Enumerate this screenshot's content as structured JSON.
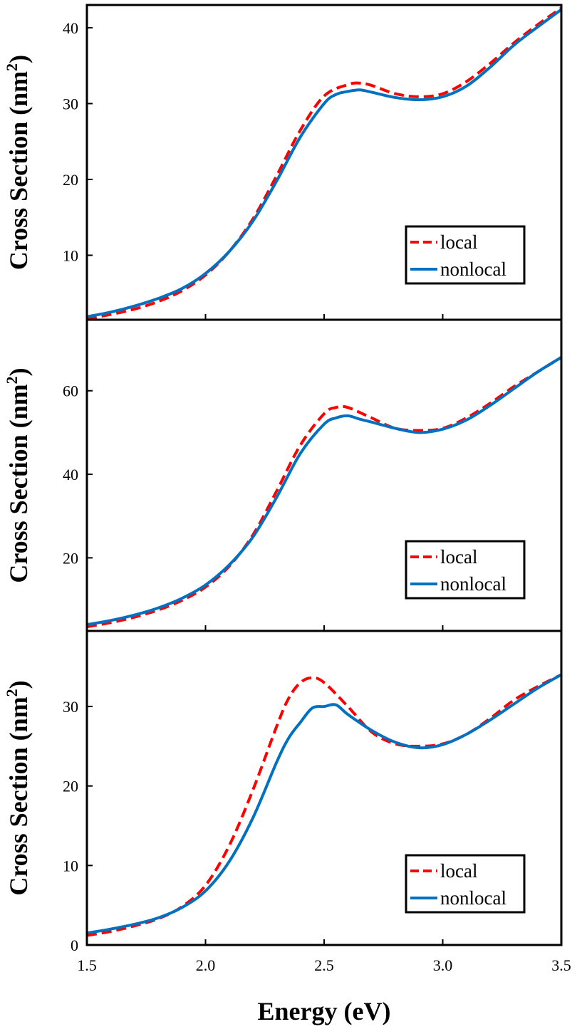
{
  "chart_data": [
    {
      "type": "line",
      "panel": "top",
      "ylabel": "Cross Section (nm",
      "ylabel_sup": "2",
      "ylabel_close": ")",
      "ylim": [
        1.5,
        43
      ],
      "yticks": [
        10,
        20,
        30,
        40
      ],
      "ytick_labels": [
        "10",
        "20",
        "30",
        "40"
      ],
      "legend_placement": "bottom-right",
      "series": [
        {
          "name": "local",
          "color": "#ff0000",
          "dash": "dashed",
          "x": [
            1.5,
            1.6,
            1.7,
            1.8,
            1.9,
            2.0,
            2.1,
            2.2,
            2.3,
            2.4,
            2.5,
            2.6,
            2.65,
            2.7,
            2.8,
            2.9,
            3.0,
            3.1,
            3.2,
            3.3,
            3.4,
            3.5
          ],
          "y": [
            1.6,
            2.2,
            2.9,
            3.9,
            5.3,
            7.4,
            10.5,
            14.8,
            20.5,
            26.5,
            31.0,
            32.5,
            32.7,
            32.4,
            31.3,
            30.9,
            31.3,
            32.9,
            35.3,
            38.0,
            40.4,
            42.6
          ]
        },
        {
          "name": "nonlocal",
          "color": "#0070c0",
          "dash": "solid",
          "x": [
            1.5,
            1.6,
            1.7,
            1.8,
            1.9,
            2.0,
            2.1,
            2.2,
            2.3,
            2.4,
            2.5,
            2.55,
            2.6,
            2.65,
            2.7,
            2.8,
            2.9,
            3.0,
            3.1,
            3.2,
            3.3,
            3.4,
            3.5
          ],
          "y": [
            1.9,
            2.5,
            3.3,
            4.3,
            5.6,
            7.6,
            10.5,
            14.5,
            19.8,
            25.6,
            30.0,
            31.2,
            31.6,
            31.8,
            31.5,
            30.8,
            30.5,
            30.9,
            32.3,
            34.8,
            37.7,
            40.1,
            42.4
          ]
        }
      ]
    },
    {
      "type": "line",
      "panel": "middle",
      "ylabel": "Cross Section (nm",
      "ylabel_sup": "2",
      "ylabel_close": ")",
      "ylim": [
        2.5,
        77
      ],
      "yticks": [
        20,
        40,
        60
      ],
      "ytick_labels": [
        "20",
        "40",
        "60"
      ],
      "legend_placement": "bottom-right",
      "series": [
        {
          "name": "local",
          "color": "#ff0000",
          "dash": "dashed",
          "x": [
            1.5,
            1.6,
            1.7,
            1.8,
            1.9,
            2.0,
            2.1,
            2.2,
            2.3,
            2.4,
            2.5,
            2.55,
            2.6,
            2.7,
            2.8,
            2.9,
            3.0,
            3.1,
            3.2,
            3.3,
            3.4,
            3.5
          ],
          "y": [
            3.5,
            4.5,
            5.8,
            7.5,
            9.8,
            13.0,
            18.0,
            25.5,
            36.0,
            47.0,
            54.5,
            56.0,
            56.0,
            53.5,
            51.0,
            50.5,
            51.0,
            53.5,
            57.0,
            61.0,
            64.5,
            68.0
          ]
        },
        {
          "name": "nonlocal",
          "color": "#0070c0",
          "dash": "solid",
          "x": [
            1.5,
            1.6,
            1.7,
            1.8,
            1.9,
            2.0,
            2.1,
            2.2,
            2.3,
            2.4,
            2.5,
            2.55,
            2.6,
            2.65,
            2.7,
            2.8,
            2.9,
            3.0,
            3.1,
            3.2,
            3.3,
            3.4,
            3.5
          ],
          "y": [
            4.0,
            5.0,
            6.3,
            8.0,
            10.3,
            13.5,
            18.3,
            25.0,
            34.5,
            45.0,
            52.0,
            53.5,
            54.0,
            53.2,
            52.5,
            51.0,
            50.0,
            50.8,
            53.0,
            56.5,
            60.5,
            64.5,
            68.0
          ]
        }
      ]
    },
    {
      "type": "line",
      "panel": "bottom",
      "ylabel": "Cross Section (nm",
      "ylabel_sup": "2",
      "ylabel_close": ")",
      "xlabel": "Energy (eV)",
      "xlim": [
        1.5,
        3.5
      ],
      "xticks": [
        1.5,
        2.0,
        2.5,
        3.0,
        3.5
      ],
      "xtick_labels": [
        "1.5",
        "2.0",
        "2.5",
        "3.0",
        "3.5"
      ],
      "ylim": [
        0,
        39.5
      ],
      "yticks": [
        0,
        10,
        20,
        30
      ],
      "ytick_labels": [
        "0",
        "10",
        "20",
        "30"
      ],
      "legend_placement": "bottom-right",
      "series": [
        {
          "name": "local",
          "color": "#ff0000",
          "dash": "dashed",
          "x": [
            1.5,
            1.6,
            1.7,
            1.8,
            1.9,
            2.0,
            2.1,
            2.2,
            2.3,
            2.35,
            2.4,
            2.45,
            2.5,
            2.6,
            2.7,
            2.8,
            2.9,
            3.0,
            3.1,
            3.2,
            3.3,
            3.4,
            3.5
          ],
          "y": [
            1.2,
            1.7,
            2.4,
            3.3,
            4.8,
            7.5,
            12.5,
            19.5,
            27.5,
            31.0,
            33.0,
            33.6,
            33.0,
            30.0,
            26.8,
            25.3,
            25.0,
            25.3,
            26.5,
            28.5,
            30.8,
            32.5,
            34.0
          ]
        },
        {
          "name": "nonlocal",
          "color": "#0070c0",
          "dash": "solid",
          "x": [
            1.5,
            1.6,
            1.7,
            1.8,
            1.9,
            2.0,
            2.1,
            2.2,
            2.3,
            2.35,
            2.4,
            2.45,
            2.5,
            2.55,
            2.6,
            2.7,
            2.8,
            2.9,
            3.0,
            3.1,
            3.2,
            3.3,
            3.4,
            3.5
          ],
          "y": [
            1.5,
            2.0,
            2.6,
            3.4,
            4.7,
            6.8,
            10.5,
            16.0,
            23.0,
            26.0,
            28.0,
            29.8,
            30.0,
            30.2,
            29.0,
            27.0,
            25.5,
            24.8,
            25.2,
            26.5,
            28.3,
            30.3,
            32.3,
            34.0
          ]
        }
      ]
    }
  ]
}
